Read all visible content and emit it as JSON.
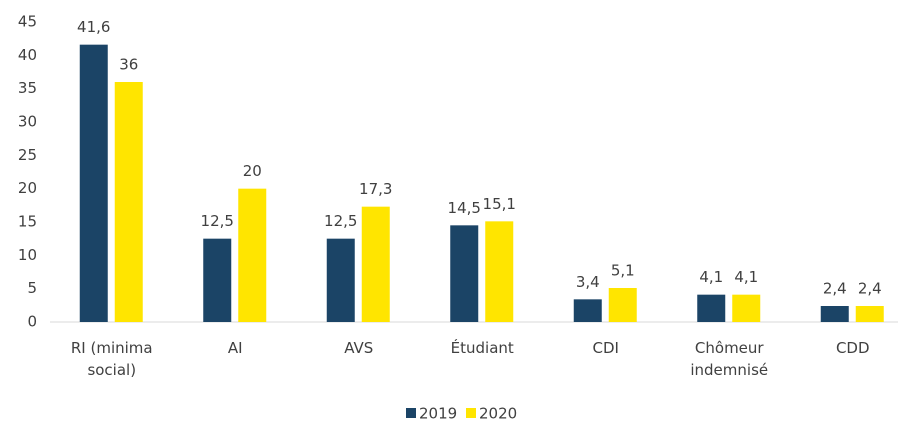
{
  "chart_data": {
    "type": "bar",
    "categories": [
      "RI (minima social)",
      "AI",
      "AVS",
      "Étudiant",
      "CDI",
      "Chômeur indemnisé",
      "CDD"
    ],
    "series": [
      {
        "name": "2019",
        "color": "#1b4466",
        "values": [
          41.6,
          12.5,
          12.5,
          14.5,
          3.4,
          4.1,
          2.4
        ],
        "value_labels": [
          "41,6",
          "12,5",
          "12,5",
          "14,5",
          "3,4",
          "4,1",
          "2,4"
        ]
      },
      {
        "name": "2020",
        "color": "#ffe500",
        "values": [
          36,
          20,
          17.3,
          15.1,
          5.1,
          4.1,
          2.4
        ],
        "value_labels": [
          "36",
          "20",
          "17,3",
          "15,1",
          "5,1",
          "4,1",
          "2,4"
        ]
      }
    ],
    "ylim": [
      0,
      45
    ],
    "yticks": [
      0,
      5,
      10,
      15,
      20,
      25,
      30,
      35,
      40,
      45
    ],
    "grid": false,
    "legend": "bottom"
  }
}
